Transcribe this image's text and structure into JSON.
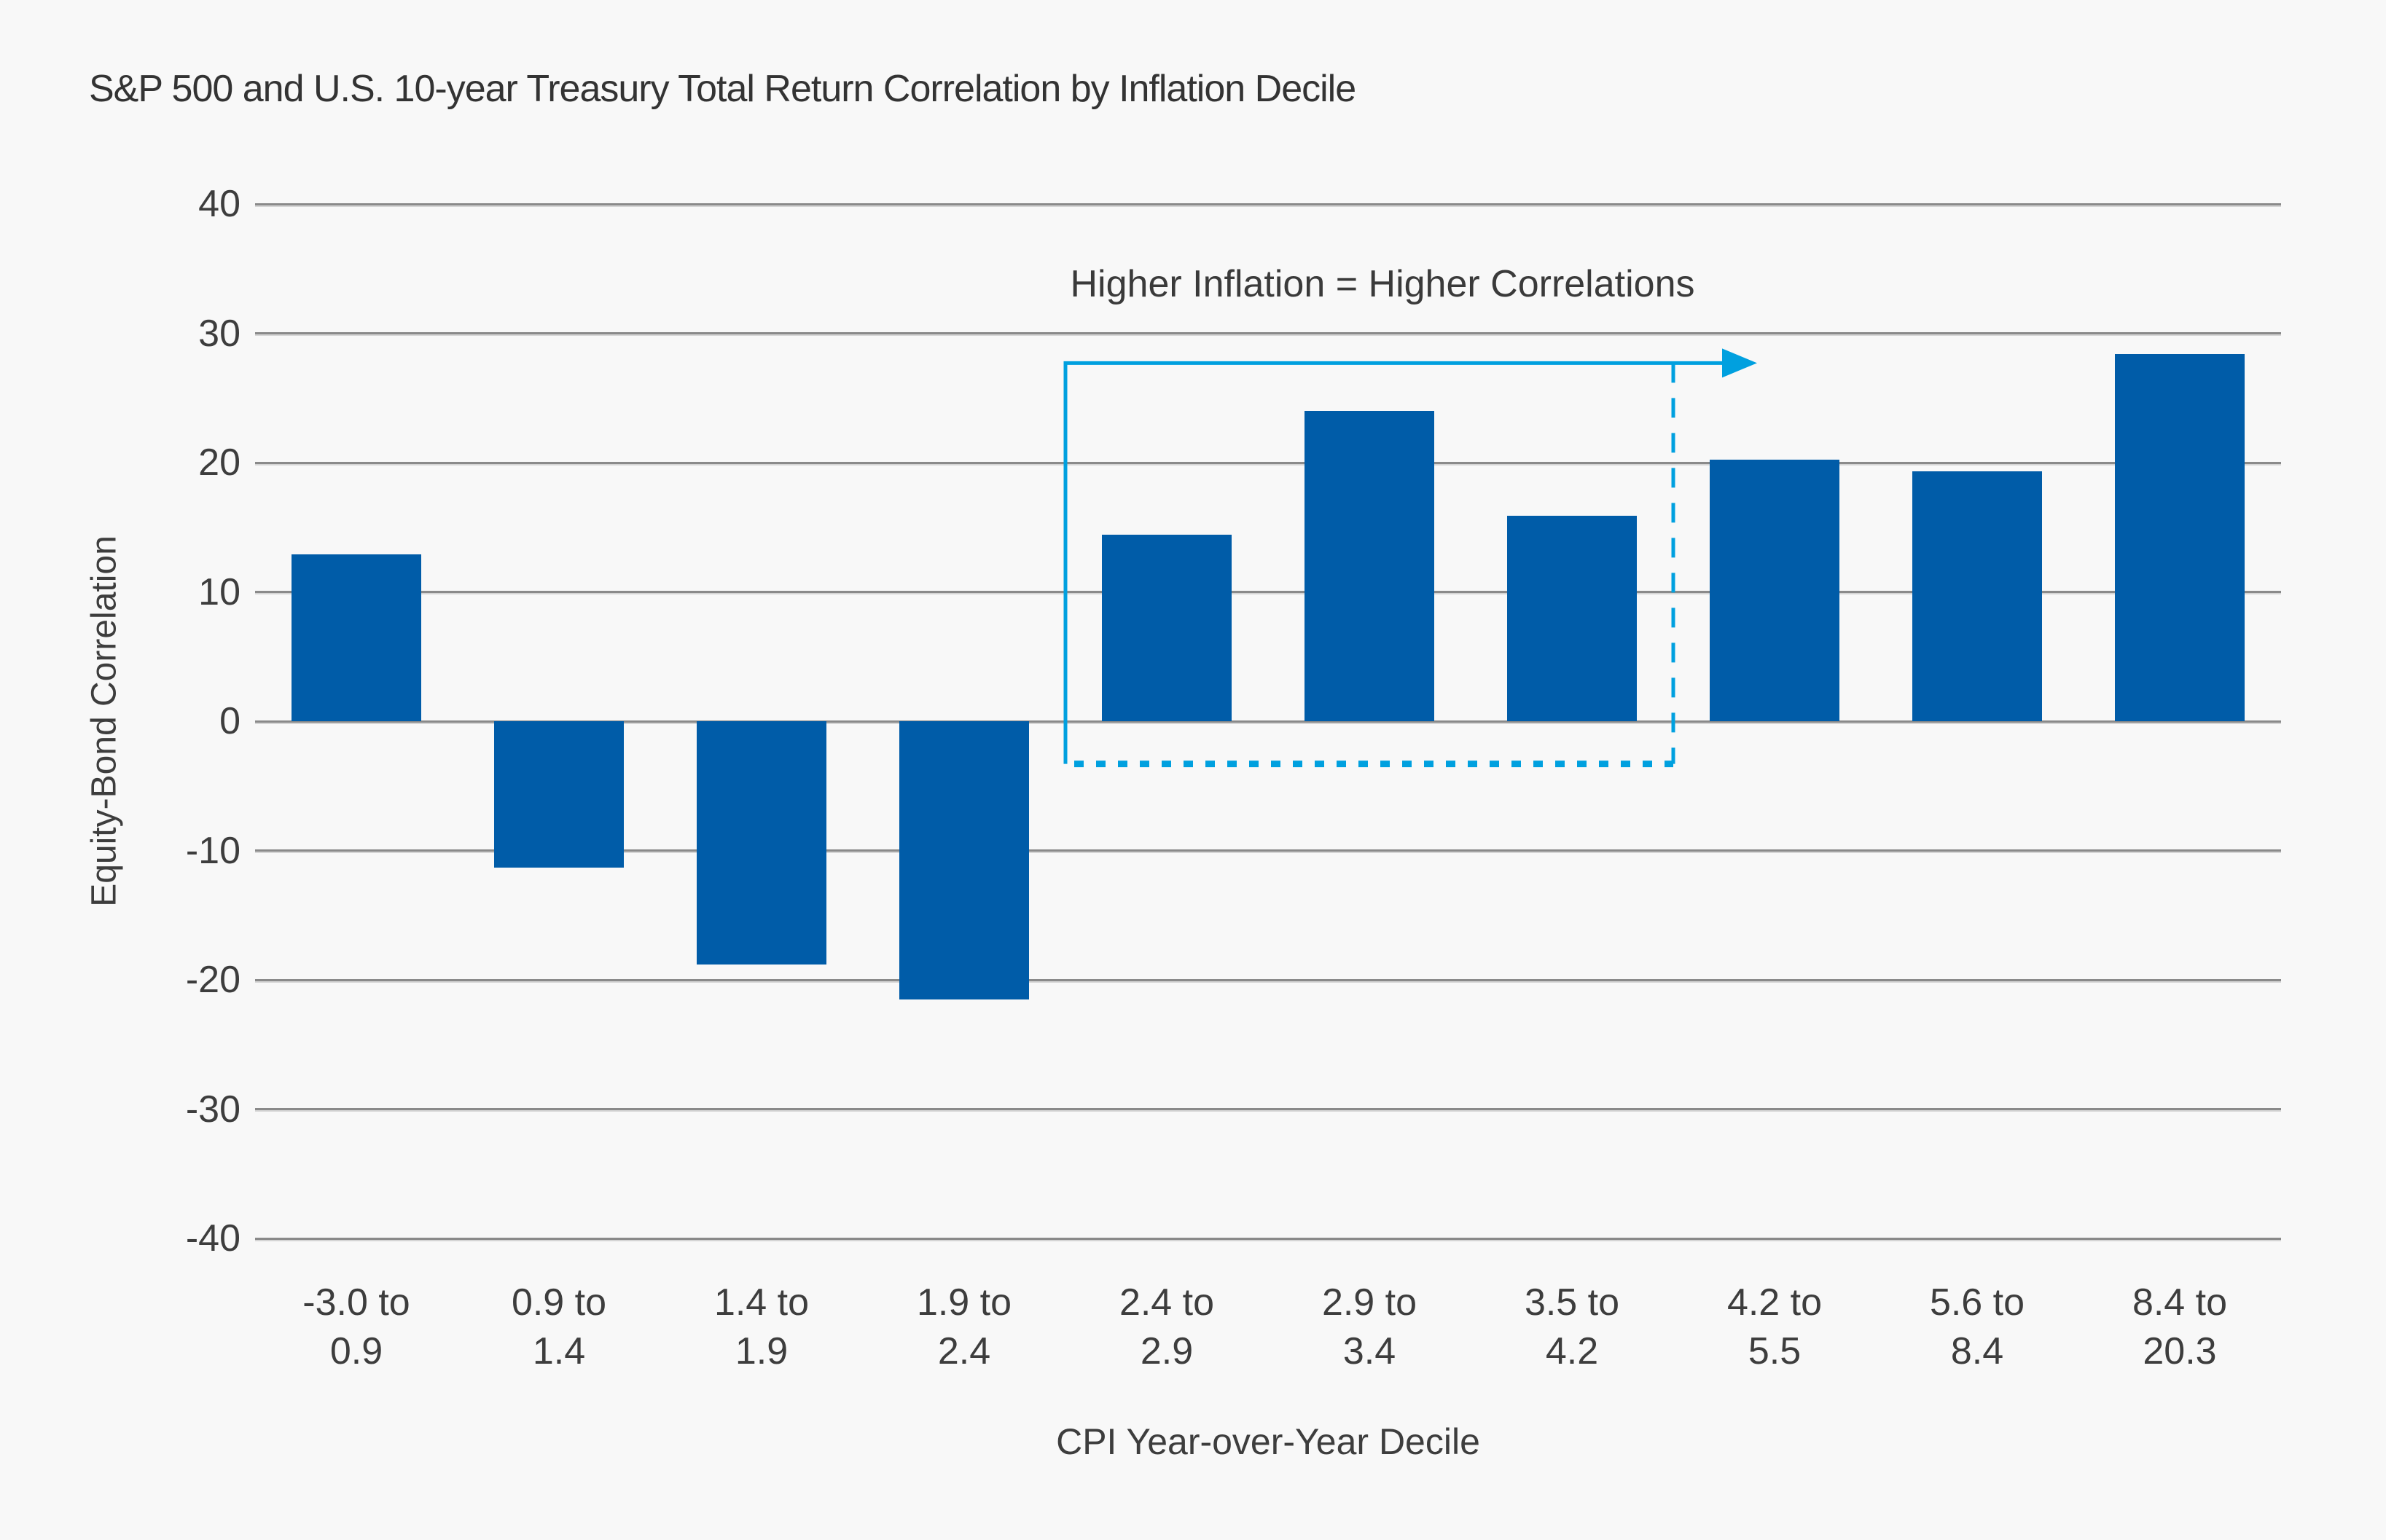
{
  "colors": {
    "background": "#F8F8F8",
    "gridline": "#8A8A8A",
    "axis_text": "#3D3D3D",
    "title_text": "#333333",
    "bar": "#005CA8",
    "annotation": "#00A0DF"
  },
  "chart_data": {
    "type": "bar",
    "title": "S&P 500 and U.S. 10-year Treasury Total Return Correlation by Inflation Decile",
    "xlabel": "CPI Year-over-Year Decile",
    "ylabel": "Equity-Bond Correlation",
    "categories": [
      "-3.0 to 0.9",
      "0.9 to 1.4",
      "1.4 to 1.9",
      "1.9 to 2.4",
      "2.4 to 2.9",
      "2.9 to 3.4",
      "3.5 to 4.2",
      "4.2 to 5.5",
      "5.6 to 8.4",
      "8.4 to 20.3"
    ],
    "values": [
      12.9,
      -11.3,
      -18.8,
      -21.5,
      14.4,
      24.0,
      15.9,
      20.2,
      19.3,
      28.4
    ],
    "ylim": [
      -40,
      40
    ],
    "yticks": [
      40,
      30,
      20,
      10,
      0,
      -10,
      -20,
      -30,
      -40
    ],
    "grid": "horizontal-only",
    "legend": "none",
    "bar_color": "#005CA8",
    "annotation": {
      "text": "Higher Inflation = Higher Correlations",
      "color": "#00A0DF",
      "box_start_category_index": 4,
      "box_end_category_index": 6,
      "box_top_value": 27.7,
      "box_bottom_value": -3.3
    }
  }
}
